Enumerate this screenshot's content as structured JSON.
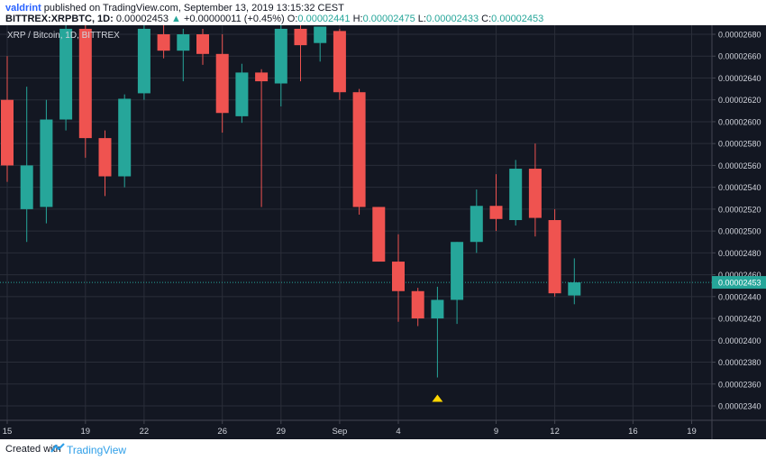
{
  "header": {
    "user": "valdrint",
    "published_text": "published on TradingView.com, September 13, 2019 13:15:32 CEST",
    "symbol": "BITTREX:XRPBTC, 1D",
    "last": "0.00002453",
    "change_arrow": "▲",
    "change": "+0.00000011 (+0.45%)",
    "o_label": "O:",
    "o_value": "0.00002441",
    "h_label": "H:",
    "h_value": "0.00002475",
    "l_label": "L:",
    "l_value": "0.00002433",
    "c_label": "C:",
    "c_value": "0.00002453"
  },
  "footer": {
    "created_with": "Created with",
    "brand": "TradingView"
  },
  "colors": {
    "background": "#131722",
    "grid": "#2a2e39",
    "up": "#26a69a",
    "down": "#ef5350",
    "axis_text": "#d1d4dc",
    "marker": "#ffd600"
  },
  "chart_data": {
    "type": "candlestick",
    "title": "XRP / Bitcoin, 1D, BITTREX",
    "ylim": [
      2.33e-05,
      2.685e-05
    ],
    "y_ticks": [
      "0.00002340",
      "0.00002360",
      "0.00002380",
      "0.00002400",
      "0.00002420",
      "0.00002440",
      "0.00002460",
      "0.00002480",
      "0.00002500",
      "0.00002520",
      "0.00002540",
      "0.00002560",
      "0.00002580",
      "0.00002600",
      "0.00002620",
      "0.00002640",
      "0.00002660",
      "0.00002680"
    ],
    "x_ticks": [
      {
        "label": "15",
        "day": 0
      },
      {
        "label": "19",
        "day": 4
      },
      {
        "label": "22",
        "day": 7
      },
      {
        "label": "26",
        "day": 11
      },
      {
        "label": "29",
        "day": 14
      },
      {
        "label": "Sep",
        "day": 17
      },
      {
        "label": "4",
        "day": 20
      },
      {
        "label": "9",
        "day": 25
      },
      {
        "label": "12",
        "day": 28
      },
      {
        "label": "16",
        "day": 32
      },
      {
        "label": "19",
        "day": 35
      }
    ],
    "last_price_label": "0.00002453",
    "last_price": 2.453e-05,
    "marker": {
      "shape": "up-triangle",
      "day": 22,
      "price": 2.347e-05
    },
    "candles": [
      {
        "day": 0,
        "open": 2.62e-05,
        "high": 2.66e-05,
        "low": 2.545e-05,
        "close": 2.56e-05
      },
      {
        "day": 1,
        "open": 2.52e-05,
        "high": 2.632e-05,
        "low": 2.49e-05,
        "close": 2.56e-05
      },
      {
        "day": 2,
        "open": 2.522e-05,
        "high": 2.62e-05,
        "low": 2.507e-05,
        "close": 2.602e-05
      },
      {
        "day": 3,
        "open": 2.602e-05,
        "high": 2.69e-05,
        "low": 2.592e-05,
        "close": 2.685e-05
      },
      {
        "day": 4,
        "open": 2.685e-05,
        "high": 2.695e-05,
        "low": 2.567e-05,
        "close": 2.585e-05
      },
      {
        "day": 5,
        "open": 2.585e-05,
        "high": 2.592e-05,
        "low": 2.532e-05,
        "close": 2.55e-05
      },
      {
        "day": 6,
        "open": 2.55e-05,
        "high": 2.625e-05,
        "low": 2.54e-05,
        "close": 2.621e-05
      },
      {
        "day": 7,
        "open": 2.626e-05,
        "high": 2.69e-05,
        "low": 2.62e-05,
        "close": 2.685e-05
      },
      {
        "day": 8,
        "open": 2.68e-05,
        "high": 2.69e-05,
        "low": 2.658e-05,
        "close": 2.665e-05
      },
      {
        "day": 9,
        "open": 2.665e-05,
        "high": 2.685e-05,
        "low": 2.637e-05,
        "close": 2.68e-05
      },
      {
        "day": 10,
        "open": 2.68e-05,
        "high": 2.685e-05,
        "low": 2.652e-05,
        "close": 2.662e-05
      },
      {
        "day": 11,
        "open": 2.662e-05,
        "high": 2.68e-05,
        "low": 2.59e-05,
        "close": 2.608e-05
      },
      {
        "day": 12,
        "open": 2.605e-05,
        "high": 2.653e-05,
        "low": 2.599e-05,
        "close": 2.645e-05
      },
      {
        "day": 13,
        "open": 2.645e-05,
        "high": 2.648e-05,
        "low": 2.522e-05,
        "close": 2.637e-05
      },
      {
        "day": 14,
        "open": 2.635e-05,
        "high": 2.692e-05,
        "low": 2.614e-05,
        "close": 2.685e-05
      },
      {
        "day": 15,
        "open": 2.685e-05,
        "high": 2.69e-05,
        "low": 2.637e-05,
        "close": 2.67e-05
      },
      {
        "day": 16,
        "open": 2.672e-05,
        "high": 2.685e-05,
        "low": 2.655e-05,
        "close": 2.687e-05
      },
      {
        "day": 17,
        "open": 2.683e-05,
        "high": 2.685e-05,
        "low": 2.62e-05,
        "close": 2.627e-05
      },
      {
        "day": 18,
        "open": 2.627e-05,
        "high": 2.63e-05,
        "low": 2.515e-05,
        "close": 2.522e-05
      },
      {
        "day": 19,
        "open": 2.522e-05,
        "high": 2.522e-05,
        "low": 2.472e-05,
        "close": 2.472e-05
      },
      {
        "day": 20,
        "open": 2.472e-05,
        "high": 2.497e-05,
        "low": 2.417e-05,
        "close": 2.445e-05
      },
      {
        "day": 21,
        "open": 2.445e-05,
        "high": 2.448e-05,
        "low": 2.413e-05,
        "close": 2.42e-05
      },
      {
        "day": 22,
        "open": 2.42e-05,
        "high": 2.449e-05,
        "low": 2.366e-05,
        "close": 2.437e-05
      },
      {
        "day": 23,
        "open": 2.437e-05,
        "high": 2.49e-05,
        "low": 2.415e-05,
        "close": 2.49e-05
      },
      {
        "day": 24,
        "open": 2.49e-05,
        "high": 2.538e-05,
        "low": 2.48e-05,
        "close": 2.523e-05
      },
      {
        "day": 25,
        "open": 2.523e-05,
        "high": 2.552e-05,
        "low": 2.5e-05,
        "close": 2.511e-05
      },
      {
        "day": 26,
        "open": 2.51e-05,
        "high": 2.565e-05,
        "low": 2.505e-05,
        "close": 2.557e-05
      },
      {
        "day": 27,
        "open": 2.557e-05,
        "high": 2.58e-05,
        "low": 2.495e-05,
        "close": 2.512e-05
      },
      {
        "day": 28,
        "open": 2.51e-05,
        "high": 2.52e-05,
        "low": 2.44e-05,
        "close": 2.443e-05
      },
      {
        "day": 29,
        "open": 2.441e-05,
        "high": 2.475e-05,
        "low": 2.433e-05,
        "close": 2.453e-05
      }
    ]
  }
}
